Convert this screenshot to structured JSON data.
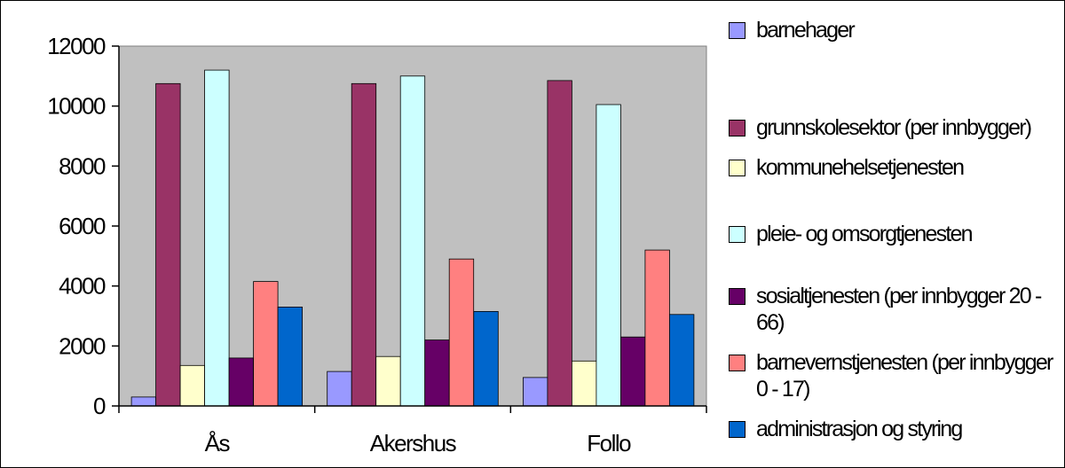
{
  "chart_data": {
    "type": "bar",
    "categories": [
      "Ås",
      "Akershus",
      "Follo"
    ],
    "ylim": [
      0,
      12000
    ],
    "yticks": [
      0,
      2000,
      4000,
      6000,
      8000,
      10000,
      12000
    ],
    "grid": false,
    "legend": "right",
    "series": [
      {
        "name": "barnehager",
        "color": "#9999ff",
        "values": [
          300,
          1150,
          950
        ]
      },
      {
        "name": "grunnskolesektor  (per innbygger)",
        "color": "#993366",
        "values": [
          10750,
          10750,
          10850
        ]
      },
      {
        "name": "kommunehelsetjenesten",
        "color": "#ffffcc",
        "values": [
          1350,
          1650,
          1500
        ]
      },
      {
        "name": "pleie- og omsorgtjenesten",
        "color": "#ccffff",
        "values": [
          11200,
          11000,
          10050
        ]
      },
      {
        "name": "sosialtjenesten (per innbygger 20 - 66)",
        "color": "#660066",
        "values": [
          1600,
          2200,
          2300
        ]
      },
      {
        "name": "barnevernstjenesten (per innbygger 0 - 17)",
        "color": "#ff8080",
        "values": [
          4150,
          4900,
          5200
        ]
      },
      {
        "name": "administrasjon og styring",
        "color": "#0066cc",
        "values": [
          3300,
          3150,
          3050
        ]
      }
    ]
  }
}
